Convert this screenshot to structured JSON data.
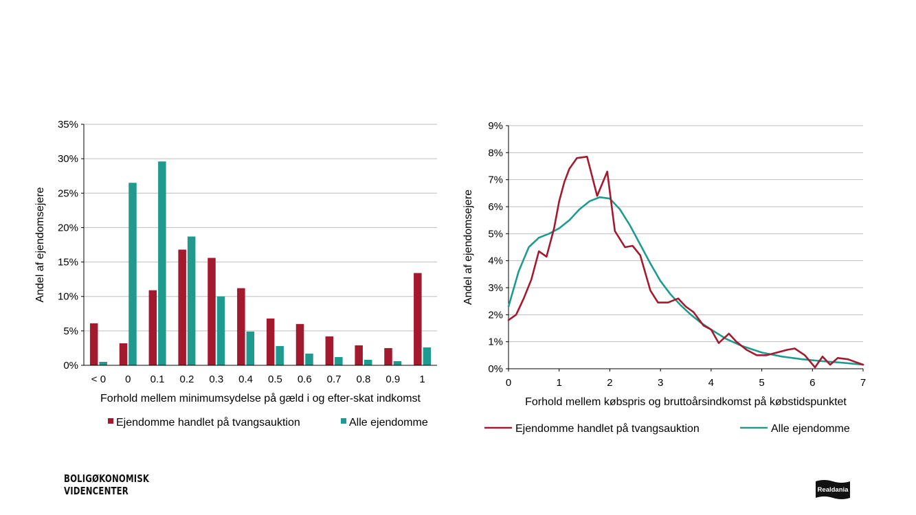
{
  "chart_data": [
    {
      "type": "bar",
      "title": "",
      "xlabel": "Forhold mellem minimumsydelse på gæld i og efter-skat indkomst",
      "ylabel": "Andel af ejendomsejere",
      "categories": [
        "< 0",
        "0",
        "0.1",
        "0.2",
        "0.3",
        "0.4",
        "0.5",
        "0.6",
        "0.7",
        "0.8",
        "0.9",
        "1"
      ],
      "ylim": [
        0,
        35
      ],
      "yticks": [
        0,
        5,
        10,
        15,
        20,
        25,
        30,
        35
      ],
      "ytick_labels": [
        "0%",
        "5%",
        "10%",
        "15%",
        "20%",
        "25%",
        "30%",
        "35%"
      ],
      "series": [
        {
          "name": "Ejendomme handlet på tvangsauktion",
          "color": "#a3192d",
          "values": [
            6.1,
            3.2,
            10.9,
            16.8,
            15.6,
            11.2,
            6.8,
            6.0,
            4.2,
            2.9,
            2.5,
            13.4
          ]
        },
        {
          "name": "Alle ejendomme",
          "color": "#1e9a8e",
          "values": [
            0.5,
            26.5,
            29.6,
            18.7,
            10.0,
            4.9,
            2.8,
            1.7,
            1.2,
            0.8,
            0.6,
            2.6
          ]
        }
      ],
      "legend": "bottom"
    },
    {
      "type": "line",
      "title": "",
      "xlabel": "Forhold mellem købspris og bruttoårsindkomst på købstidspunktet",
      "ylabel": "Andel af ejendomsejere",
      "xlim": [
        0,
        7
      ],
      "xticks": [
        0,
        1,
        2,
        3,
        4,
        5,
        6,
        7
      ],
      "xtick_labels": [
        "0",
        "1",
        "2",
        "3",
        "4",
        "5",
        "6",
        "7"
      ],
      "ylim": [
        0,
        9
      ],
      "yticks": [
        0,
        1,
        2,
        3,
        4,
        5,
        6,
        7,
        8,
        9
      ],
      "ytick_labels": [
        "0%",
        "1%",
        "2%",
        "3%",
        "4%",
        "5%",
        "6%",
        "7%",
        "8%",
        "9%"
      ],
      "series": [
        {
          "name": "Ejendomme handlet på tvangsauktion",
          "color": "#a3192d",
          "x": [
            0,
            0.15,
            0.3,
            0.45,
            0.6,
            0.75,
            0.9,
            1.0,
            1.1,
            1.2,
            1.35,
            1.55,
            1.75,
            1.95,
            2.1,
            2.3,
            2.45,
            2.6,
            2.8,
            2.95,
            3.15,
            3.35,
            3.5,
            3.65,
            3.85,
            4.0,
            4.15,
            4.35,
            4.5,
            4.7,
            4.9,
            5.1,
            5.3,
            5.5,
            5.65,
            5.85,
            6.05,
            6.2,
            6.35,
            6.5,
            6.7,
            6.85,
            7.0
          ],
          "y": [
            1.8,
            2.0,
            2.6,
            3.3,
            4.35,
            4.15,
            5.2,
            6.2,
            6.9,
            7.4,
            7.8,
            7.85,
            6.4,
            7.3,
            5.1,
            4.5,
            4.55,
            4.2,
            2.9,
            2.45,
            2.45,
            2.6,
            2.3,
            2.1,
            1.6,
            1.45,
            0.95,
            1.3,
            1.0,
            0.7,
            0.5,
            0.5,
            0.6,
            0.7,
            0.75,
            0.5,
            0.05,
            0.45,
            0.15,
            0.4,
            0.35,
            0.25,
            0.15
          ]
        },
        {
          "name": "Alle ejendomme",
          "color": "#1e9a8e",
          "x": [
            0,
            0.2,
            0.4,
            0.6,
            0.8,
            1.0,
            1.2,
            1.4,
            1.6,
            1.8,
            2.0,
            2.2,
            2.4,
            2.6,
            2.8,
            3.0,
            3.2,
            3.4,
            3.6,
            3.8,
            4.0,
            4.3,
            4.6,
            5.0,
            5.4,
            5.8,
            6.2,
            6.6,
            7.0
          ],
          "y": [
            2.3,
            3.6,
            4.5,
            4.85,
            5.0,
            5.2,
            5.5,
            5.9,
            6.2,
            6.35,
            6.3,
            5.9,
            5.3,
            4.6,
            3.9,
            3.25,
            2.75,
            2.35,
            2.0,
            1.7,
            1.45,
            1.1,
            0.85,
            0.6,
            0.45,
            0.35,
            0.28,
            0.22,
            0.15
          ]
        }
      ],
      "legend": "bottom"
    }
  ],
  "logos": {
    "left_line1": "BOLIGØKONOMISK",
    "left_line2": "VIDENCENTER",
    "right": "Realdania"
  }
}
